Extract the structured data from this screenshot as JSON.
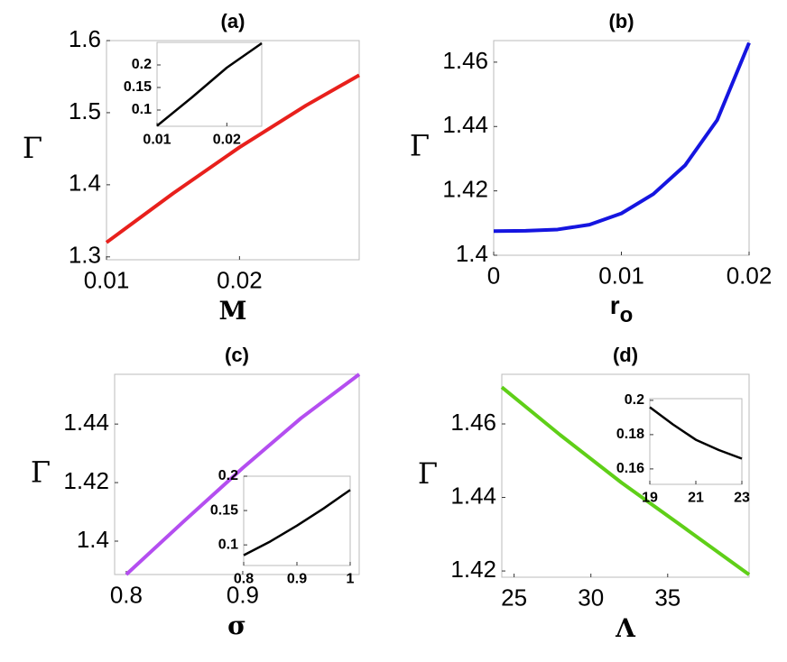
{
  "chart_data": [
    {
      "type": "line",
      "title": "(a)",
      "xlabel": "M",
      "ylabel": "Γ",
      "xlim": [
        0.01,
        0.029
      ],
      "xticks": [
        0.01,
        0.02
      ],
      "ylim": [
        1.296,
        1.6
      ],
      "yticks": [
        1.3,
        1.4,
        1.5,
        1.6
      ],
      "series": [
        {
          "color": "#e8201c",
          "x": [
            0.01,
            0.015,
            0.02,
            0.025,
            0.029
          ],
          "values": [
            1.32,
            1.388,
            1.452,
            1.51,
            1.552
          ]
        }
      ],
      "inset": {
        "type": "line",
        "xlim": [
          0.01,
          0.025
        ],
        "xticks": [
          0.01,
          0.02
        ],
        "ylim": [
          0.064,
          0.25
        ],
        "yticks": [
          0.1,
          0.15,
          0.2
        ],
        "series": [
          {
            "color": "#000000",
            "x": [
              0.01,
              0.015,
              0.02,
              0.025
            ],
            "values": [
              0.065,
              0.128,
              0.194,
              0.248
            ]
          }
        ]
      }
    },
    {
      "type": "line",
      "title": "(b)",
      "xlabel": "r",
      "xlabel_subscript": "o",
      "ylabel": "Γ",
      "xlim": [
        0,
        0.02
      ],
      "xticks": [
        0,
        0.01,
        0.02
      ],
      "ylim": [
        1.4,
        1.4667
      ],
      "yticks": [
        1.4,
        1.42,
        1.44,
        1.46
      ],
      "series": [
        {
          "color": "#1515e0",
          "x": [
            0,
            0.0025,
            0.005,
            0.0075,
            0.01,
            0.0125,
            0.015,
            0.0175,
            0.02
          ],
          "values": [
            1.4075,
            1.4076,
            1.408,
            1.4095,
            1.413,
            1.419,
            1.428,
            1.442,
            1.466
          ]
        }
      ]
    },
    {
      "type": "line",
      "title": "(c)",
      "xlabel": "σ",
      "ylabel": "Γ",
      "xlim": [
        0.79,
        1.0
      ],
      "xticks": [
        0.8,
        0.9
      ],
      "ylim": [
        1.3886,
        1.457
      ],
      "yticks": [
        1.4,
        1.42,
        1.44
      ],
      "series": [
        {
          "color": "#b44ef0",
          "x": [
            0.8,
            0.85,
            0.9,
            0.95,
            1.0
          ],
          "values": [
            1.3886,
            1.407,
            1.425,
            1.442,
            1.457
          ]
        }
      ],
      "inset": {
        "type": "line",
        "xlim": [
          0.8,
          1
        ],
        "xticks": [
          0.8,
          0.9,
          1
        ],
        "ylim": [
          0.07,
          0.2
        ],
        "yticks": [
          0.1,
          0.15,
          0.2
        ],
        "series": [
          {
            "color": "#000000",
            "x": [
              0.8,
              0.85,
              0.9,
              0.95,
              1
            ],
            "values": [
              0.085,
              0.105,
              0.128,
              0.153,
              0.18
            ]
          }
        ]
      }
    },
    {
      "type": "line",
      "title": "(d)",
      "xlabel": "Λ",
      "ylabel": "Γ",
      "xlim": [
        24.2,
        40.3
      ],
      "xticks": [
        25,
        30,
        35
      ],
      "ylim": [
        1.4183,
        1.4735
      ],
      "yticks": [
        1.42,
        1.44,
        1.46
      ],
      "series": [
        {
          "color": "#5fcf18",
          "x": [
            24.2,
            28,
            32,
            36,
            40.3
          ],
          "values": [
            1.47,
            1.457,
            1.444,
            1.432,
            1.419
          ]
        }
      ],
      "inset": {
        "type": "line",
        "xlim": [
          19,
          23
        ],
        "xticks": [
          19,
          21,
          23
        ],
        "ylim": [
          0.151,
          0.201
        ],
        "yticks": [
          0.16,
          0.18,
          0.2
        ],
        "series": [
          {
            "color": "#000000",
            "x": [
              19,
              20,
              21,
              22,
              23
            ],
            "values": [
              0.196,
              0.186,
              0.177,
              0.171,
              0.166
            ]
          }
        ]
      }
    }
  ]
}
